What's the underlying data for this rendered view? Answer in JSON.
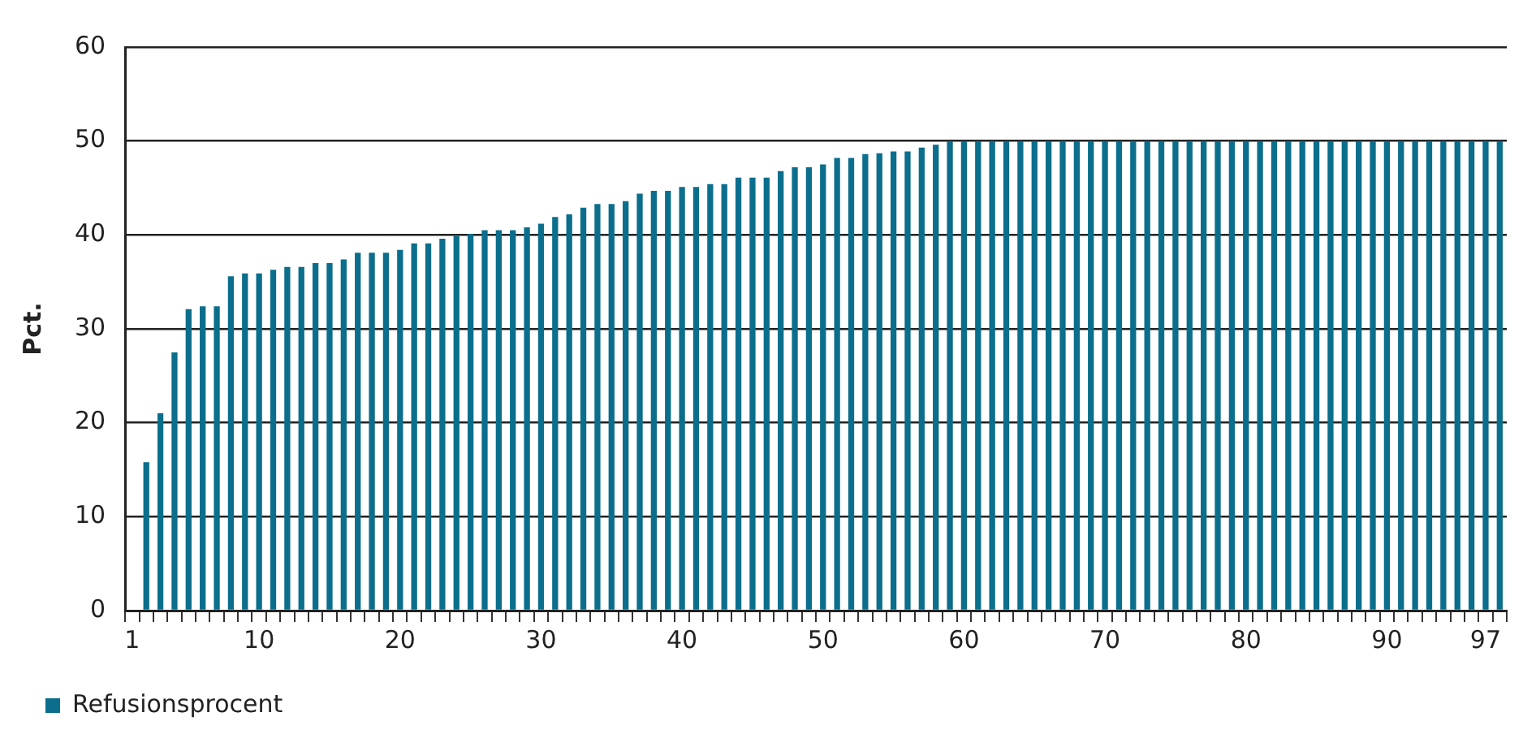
{
  "chart_data": {
    "type": "bar",
    "ylabel": "Pct.",
    "categories": [
      "1",
      null,
      null,
      null,
      null,
      null,
      null,
      null,
      null,
      "10",
      null,
      null,
      null,
      null,
      null,
      null,
      null,
      null,
      null,
      "20",
      null,
      null,
      null,
      null,
      null,
      null,
      null,
      null,
      null,
      "30",
      null,
      null,
      null,
      null,
      null,
      null,
      null,
      null,
      null,
      "40",
      null,
      null,
      null,
      null,
      null,
      null,
      null,
      null,
      null,
      "50",
      null,
      null,
      null,
      null,
      null,
      null,
      null,
      null,
      null,
      "60",
      null,
      null,
      null,
      null,
      null,
      null,
      null,
      null,
      null,
      "70",
      null,
      null,
      null,
      null,
      null,
      null,
      null,
      null,
      null,
      "80",
      null,
      null,
      null,
      null,
      null,
      null,
      null,
      null,
      null,
      "90",
      null,
      null,
      null,
      null,
      null,
      null,
      "97",
      null
    ],
    "series": [
      {
        "name": "Refusionsprocent",
        "color": "#0b6e8c",
        "values": [
          null,
          15.8,
          21.0,
          27.5,
          32.1,
          32.4,
          32.4,
          35.6,
          35.9,
          35.9,
          36.3,
          36.6,
          36.6,
          37.0,
          37.0,
          37.4,
          38.1,
          38.1,
          38.1,
          38.4,
          39.1,
          39.1,
          39.6,
          39.9,
          40.1,
          40.5,
          40.5,
          40.5,
          40.8,
          41.2,
          41.9,
          42.2,
          42.9,
          43.3,
          43.3,
          43.6,
          44.4,
          44.7,
          44.7,
          45.1,
          45.1,
          45.4,
          45.4,
          46.1,
          46.1,
          46.1,
          46.8,
          47.2,
          47.2,
          47.5,
          48.2,
          48.2,
          48.6,
          48.7,
          48.9,
          48.9,
          49.3,
          49.6,
          50,
          50,
          50,
          50,
          50,
          50,
          50,
          50,
          50,
          50,
          50,
          50,
          50,
          50,
          50,
          50,
          50,
          50,
          50,
          50,
          50,
          50,
          50,
          50,
          50,
          50,
          50,
          50,
          50,
          50,
          50,
          50,
          50,
          50,
          50,
          50,
          50,
          50,
          50,
          50
        ]
      }
    ],
    "ylim": [
      0,
      60
    ],
    "yticks": [
      0,
      10,
      20,
      30,
      40,
      50,
      60
    ],
    "grid": "y",
    "legend": "bottom left"
  }
}
